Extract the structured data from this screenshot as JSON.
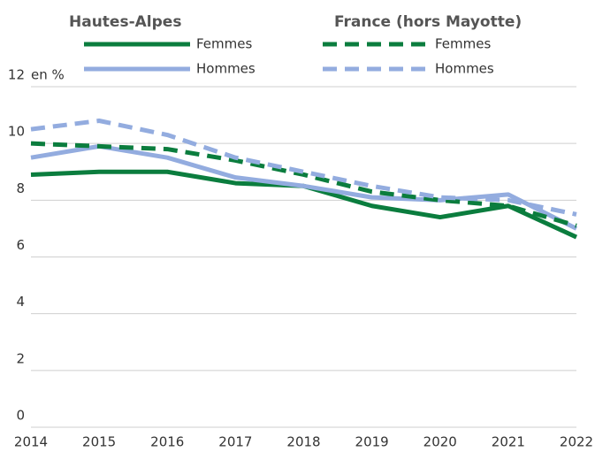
{
  "chart_data": {
    "type": "line",
    "ylabel": "en %",
    "legend_groups": [
      "Hautes-Alpes",
      "France (hors Mayotte)"
    ],
    "x": [
      2014,
      2015,
      2016,
      2017,
      2018,
      2019,
      2020,
      2021,
      2022
    ],
    "xlim": [
      2014,
      2022
    ],
    "xticks": [
      2014,
      2015,
      2016,
      2017,
      2018,
      2019,
      2020,
      2021,
      2022
    ],
    "ylim": [
      0,
      12
    ],
    "yticks": [
      0,
      2,
      4,
      6,
      8,
      10,
      12
    ],
    "grid": true,
    "series": [
      {
        "name": "Femmes",
        "color": "#0b7d3e",
        "line_style": "solid",
        "values": [
          8.9,
          9.0,
          9.0,
          8.6,
          8.5,
          7.8,
          7.4,
          7.8,
          6.7
        ]
      },
      {
        "name": "Hommes",
        "color": "#93acdf",
        "line_style": "solid",
        "values": [
          9.5,
          9.9,
          9.5,
          8.8,
          8.5,
          8.1,
          8.0,
          8.2,
          7.0
        ]
      },
      {
        "name": "Femmes",
        "color": "#0b7d3e",
        "line_style": "dashed",
        "values": [
          10.0,
          9.9,
          9.8,
          9.4,
          8.9,
          8.3,
          8.0,
          7.8,
          7.1
        ]
      },
      {
        "name": "Hommes",
        "color": "#93acdf",
        "line_style": "dashed",
        "values": [
          10.5,
          10.8,
          10.3,
          9.5,
          9.0,
          8.5,
          8.1,
          8.0,
          7.5
        ]
      }
    ]
  }
}
